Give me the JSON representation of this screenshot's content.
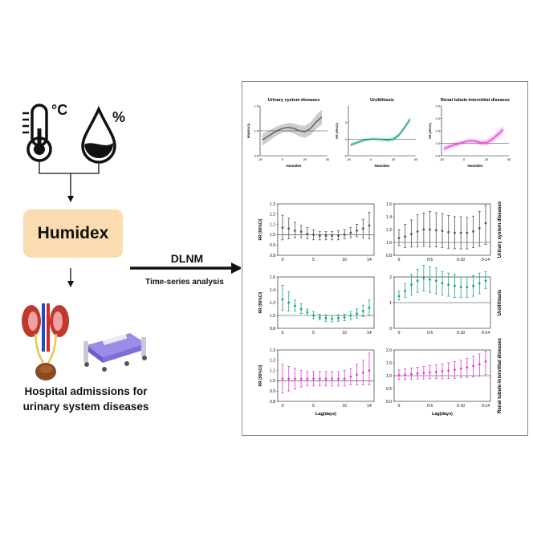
{
  "left": {
    "temp_unit": "°C",
    "humidity_unit": "%",
    "humidex_label": "Humidex",
    "hospital_line1": "Hospital admissions for",
    "hospital_line2": "urinary system diseases"
  },
  "arrow": {
    "method": "DLNM",
    "subtitle": "Time-series analysis"
  },
  "colors": {
    "gray": "#555555",
    "green": "#11a86b",
    "magenta": "#e23bd6",
    "humidex_box": "#fbdcb0"
  },
  "icons": [
    "thermometer-icon",
    "water-drop-icon",
    "kidney-icon",
    "hospital-bed-icon"
  ],
  "top_charts": [
    {
      "title": "Urinary system diseases",
      "ylabel": "RR(95%CI)",
      "xlabel": "Humidex",
      "color": "#555555",
      "yticks": [
        "1.5",
        "1.0",
        "0.5"
      ],
      "xticks": [
        "-20",
        "0",
        "20",
        "40"
      ]
    },
    {
      "title": "Urolithiasis",
      "ylabel": "RR (95%CI)",
      "xlabel": "Humidex",
      "color": "#11a86b",
      "yticks": [
        "2",
        "1",
        "0"
      ],
      "xticks": [
        "-20",
        "0",
        "20",
        "40"
      ]
    },
    {
      "title": "Renal tubule-interstitial diseases",
      "ylabel": "RR (95%CI)",
      "xlabel": "Humidex",
      "color": "#e23bd6",
      "yticks": [
        "2.5",
        "2.0",
        "1.5",
        "1.0",
        "0.5"
      ],
      "xticks": [
        "-20",
        "0",
        "20",
        "40"
      ]
    }
  ],
  "chart_data": [
    {
      "type": "line",
      "title": "Urinary system diseases",
      "xlabel": "Humidex",
      "ylabel": "RR(95%CI)",
      "xlim": [
        -20,
        40
      ],
      "ylim": [
        0.5,
        1.5
      ],
      "x": [
        -18,
        -10,
        -5,
        0,
        5,
        10,
        15,
        20,
        25,
        30,
        35
      ],
      "y": [
        0.82,
        0.93,
        1.0,
        1.05,
        1.07,
        1.05,
        1.0,
        0.98,
        1.05,
        1.18,
        1.28
      ]
    },
    {
      "type": "line",
      "title": "Urolithiasis",
      "xlabel": "Humidex",
      "ylabel": "RR (95%CI)",
      "xlim": [
        -20,
        40
      ],
      "ylim": [
        0,
        3
      ],
      "x": [
        -18,
        -10,
        -5,
        0,
        5,
        10,
        15,
        20,
        25,
        30,
        35
      ],
      "y": [
        0.65,
        0.85,
        0.95,
        1.0,
        1.0,
        0.98,
        0.95,
        1.0,
        1.25,
        1.7,
        2.2
      ]
    },
    {
      "type": "line",
      "title": "Renal tubule-interstitial diseases",
      "xlabel": "Humidex",
      "ylabel": "RR (95%CI)",
      "xlim": [
        -20,
        40
      ],
      "ylim": [
        0.5,
        2.5
      ],
      "x": [
        -18,
        -10,
        -5,
        0,
        5,
        10,
        15,
        20,
        25,
        30,
        35
      ],
      "y": [
        0.78,
        0.92,
        0.98,
        1.05,
        1.1,
        1.08,
        1.02,
        1.02,
        1.15,
        1.35,
        1.55
      ]
    },
    {
      "type": "scatter",
      "title": "",
      "xlabel": "",
      "ylabel": "RR (95%CI)",
      "ylim": [
        0.8,
        1.3
      ],
      "xticks": [
        "0",
        "5",
        "10",
        "14"
      ],
      "x": [
        0,
        1,
        2,
        3,
        4,
        5,
        6,
        7,
        8,
        9,
        10,
        11,
        12,
        13,
        14
      ],
      "y": [
        1.07,
        1.06,
        1.04,
        1.03,
        1.01,
        1.0,
        0.99,
        0.99,
        0.99,
        0.99,
        1.0,
        1.02,
        1.04,
        1.06,
        1.09
      ],
      "lo": [
        0.95,
        0.96,
        0.97,
        0.97,
        0.96,
        0.95,
        0.95,
        0.95,
        0.95,
        0.95,
        0.96,
        0.97,
        0.98,
        0.97,
        0.96
      ],
      "hi": [
        1.19,
        1.16,
        1.12,
        1.09,
        1.07,
        1.05,
        1.03,
        1.03,
        1.03,
        1.04,
        1.05,
        1.07,
        1.1,
        1.15,
        1.22
      ]
    },
    {
      "type": "scatter",
      "title": "",
      "xlabel": "",
      "ylabel": "",
      "ylim": [
        0.8,
        1.6
      ],
      "xticks": [
        "0",
        "0-5",
        "0-10",
        "0-14"
      ],
      "x": [
        0,
        1,
        2,
        3,
        4,
        5,
        6,
        7,
        8,
        9,
        10,
        11,
        12,
        13,
        14
      ],
      "y": [
        1.07,
        1.09,
        1.13,
        1.17,
        1.2,
        1.2,
        1.19,
        1.18,
        1.16,
        1.15,
        1.15,
        1.15,
        1.17,
        1.22,
        1.3
      ],
      "lo": [
        0.95,
        0.92,
        0.93,
        0.93,
        0.94,
        0.93,
        0.93,
        0.92,
        0.91,
        0.9,
        0.9,
        0.9,
        0.92,
        0.94,
        0.97
      ],
      "hi": [
        1.2,
        1.28,
        1.35,
        1.43,
        1.46,
        1.48,
        1.46,
        1.45,
        1.42,
        1.4,
        1.4,
        1.39,
        1.41,
        1.48,
        1.58
      ]
    },
    {
      "type": "scatter",
      "title": "",
      "xlabel": "",
      "ylabel": "RR (95%CI)",
      "ylim": [
        0.8,
        1.6
      ],
      "xticks": [
        "0",
        "5",
        "10",
        "14"
      ],
      "x": [
        0,
        1,
        2,
        3,
        4,
        5,
        6,
        7,
        8,
        9,
        10,
        11,
        12,
        13,
        14
      ],
      "y": [
        1.25,
        1.2,
        1.15,
        1.1,
        1.05,
        1.0,
        0.97,
        0.96,
        0.95,
        0.96,
        0.97,
        1.0,
        1.03,
        1.07,
        1.12
      ],
      "lo": [
        1.08,
        1.07,
        1.07,
        1.03,
        1.0,
        0.95,
        0.93,
        0.91,
        0.9,
        0.91,
        0.92,
        0.94,
        0.96,
        0.98,
        1.0
      ],
      "hi": [
        1.47,
        1.37,
        1.24,
        1.18,
        1.1,
        1.06,
        1.02,
        1.01,
        1.0,
        1.01,
        1.02,
        1.06,
        1.1,
        1.16,
        1.24
      ]
    },
    {
      "type": "scatter",
      "title": "",
      "xlabel": "",
      "ylabel": "",
      "ylim": [
        0,
        2
      ],
      "xticks": [
        "0",
        "0-5",
        "0-10",
        "0-14"
      ],
      "x": [
        0,
        1,
        2,
        3,
        4,
        5,
        6,
        7,
        8,
        9,
        10,
        11,
        12,
        13,
        14
      ],
      "y": [
        1.25,
        1.45,
        1.7,
        1.85,
        1.95,
        1.9,
        1.85,
        1.75,
        1.7,
        1.65,
        1.6,
        1.6,
        1.65,
        1.75,
        1.85
      ],
      "lo": [
        1.1,
        1.2,
        1.3,
        1.4,
        1.45,
        1.4,
        1.35,
        1.3,
        1.25,
        1.2,
        1.2,
        1.2,
        1.25,
        1.35,
        1.55
      ],
      "hi": [
        1.45,
        1.75,
        2.1,
        2.3,
        2.45,
        2.4,
        2.35,
        2.2,
        2.15,
        2.1,
        2.0,
        2.0,
        2.05,
        2.15,
        2.2
      ]
    },
    {
      "type": "scatter",
      "title": "",
      "xlabel": "Lag(days)",
      "ylabel": "RR (95%CI)",
      "ylim": [
        0.8,
        1.3
      ],
      "xticks": [
        "0",
        "5",
        "10",
        "14"
      ],
      "x": [
        0,
        1,
        2,
        3,
        4,
        5,
        6,
        7,
        8,
        9,
        10,
        11,
        12,
        13,
        14
      ],
      "y": [
        1.02,
        1.02,
        1.02,
        1.02,
        1.02,
        1.02,
        1.02,
        1.02,
        1.02,
        1.02,
        1.02,
        1.04,
        1.06,
        1.08,
        1.1
      ],
      "lo": [
        0.88,
        0.9,
        0.92,
        0.94,
        0.95,
        0.95,
        0.95,
        0.95,
        0.95,
        0.95,
        0.95,
        0.96,
        0.96,
        0.96,
        0.96
      ],
      "hi": [
        1.16,
        1.14,
        1.12,
        1.1,
        1.09,
        1.09,
        1.09,
        1.09,
        1.09,
        1.09,
        1.1,
        1.12,
        1.16,
        1.2,
        1.27
      ]
    },
    {
      "type": "scatter",
      "title": "",
      "xlabel": "Lag(days)",
      "ylabel": "",
      "ylim": [
        0,
        2
      ],
      "xticks": [
        "0",
        "0-5",
        "0-10",
        "0-14"
      ],
      "x": [
        0,
        1,
        2,
        3,
        4,
        5,
        6,
        7,
        8,
        9,
        10,
        11,
        12,
        13,
        14
      ],
      "y": [
        1.02,
        1.04,
        1.06,
        1.08,
        1.1,
        1.12,
        1.14,
        1.17,
        1.2,
        1.23,
        1.27,
        1.32,
        1.38,
        1.45,
        1.55
      ],
      "lo": [
        0.85,
        0.85,
        0.86,
        0.87,
        0.87,
        0.88,
        0.88,
        0.88,
        0.89,
        0.9,
        0.92,
        0.93,
        0.95,
        0.98,
        1.05
      ],
      "hi": [
        1.22,
        1.26,
        1.3,
        1.33,
        1.36,
        1.39,
        1.42,
        1.46,
        1.5,
        1.55,
        1.6,
        1.67,
        1.75,
        1.85,
        1.95
      ]
    }
  ],
  "row_labels": [
    "Urinary system diseases",
    "Urolithiasis",
    "Renal tubule-interstitial diseases"
  ],
  "lag_grid": {
    "xlabel": "Lag(days)",
    "ylabel": "RR (95%CI)",
    "left_xticks": [
      "0",
      "5",
      "10",
      "14"
    ],
    "right_xticks": [
      "0",
      "0-5",
      "0-10",
      "0-14"
    ],
    "row_yticks_left": [
      [
        "1.3",
        "1.2",
        "1.1",
        "1.0",
        "0.9",
        "0.8"
      ],
      [
        "1.6",
        "1.4",
        "1.2",
        "1.0",
        "0.8"
      ],
      [
        "1.3",
        "1.2",
        "1.1",
        "1.0",
        "0.9",
        "0.8"
      ]
    ],
    "row_yticks_right": [
      [
        "1.6",
        "1.4",
        "1.2",
        "1.0",
        "0.8"
      ],
      [
        "2",
        "1",
        "0"
      ],
      [
        "2.0",
        "1.5",
        "1.0",
        "0.5",
        "0.0"
      ]
    ],
    "row_colors": [
      "#555555",
      "#11a86b",
      "#e23bd6"
    ]
  }
}
